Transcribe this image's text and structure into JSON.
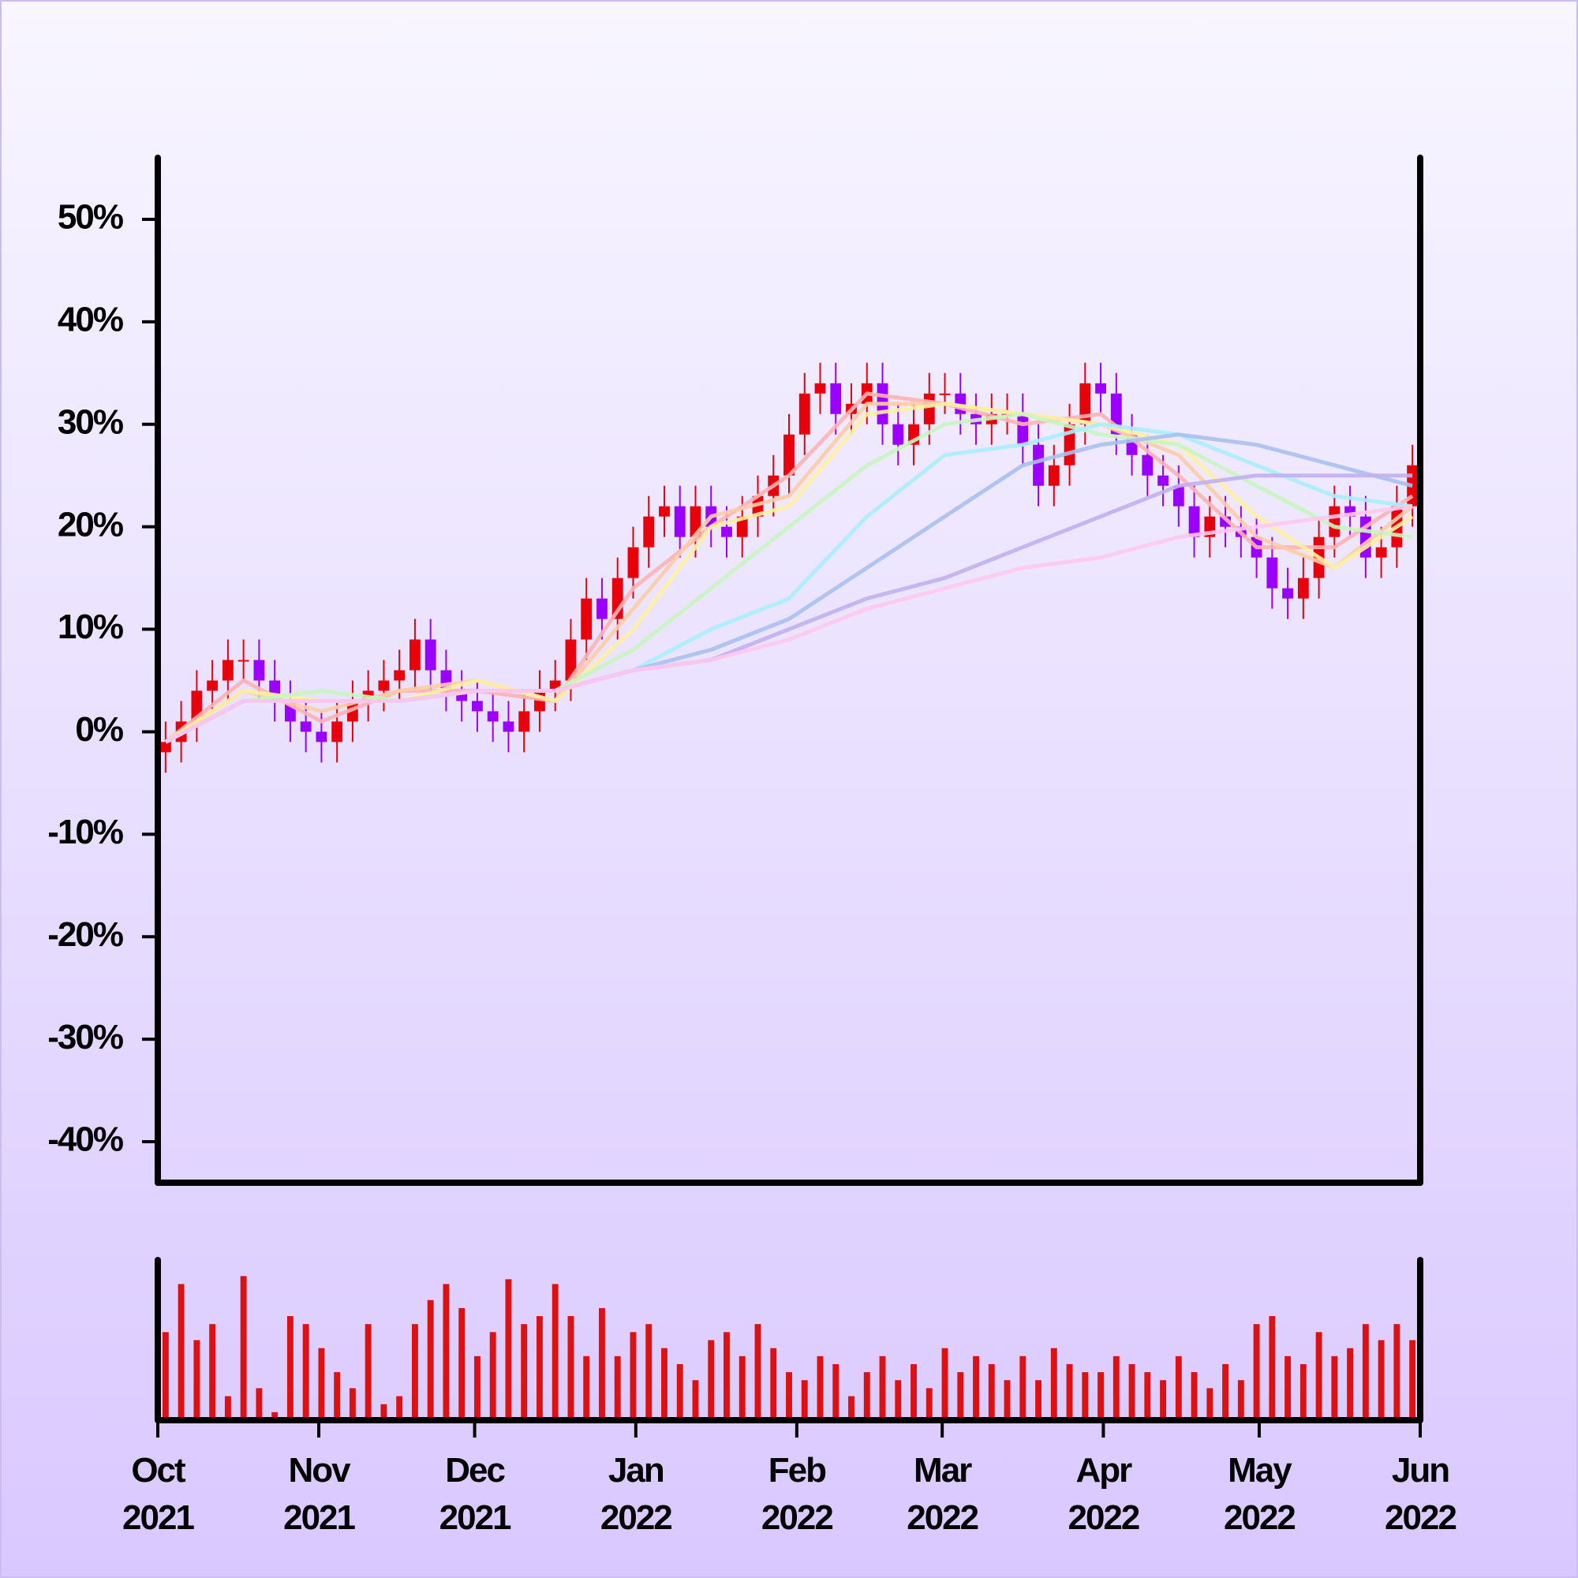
{
  "chart_data": [
    {
      "type": "candlestick",
      "open": [
        -2,
        -1,
        1,
        4,
        5,
        7,
        7,
        5,
        3,
        1,
        0,
        -1,
        1,
        3,
        4,
        5,
        6,
        9,
        6,
        4,
        3,
        2,
        1,
        0,
        2,
        4,
        5,
        9,
        13,
        11,
        15,
        18,
        21,
        22,
        19,
        22,
        20,
        19,
        21,
        23,
        25,
        29,
        33,
        34,
        31,
        32,
        34,
        30,
        28,
        30,
        33,
        33,
        31,
        30,
        31,
        31,
        28,
        24,
        26,
        30,
        34,
        33,
        29,
        27,
        25,
        24,
        22,
        19,
        21,
        20,
        19,
        17,
        14,
        13,
        15,
        19,
        22,
        21,
        17,
        18,
        22
      ],
      "high": [
        1,
        3,
        6,
        7,
        9,
        9,
        9,
        7,
        5,
        3,
        2,
        3,
        5,
        6,
        7,
        8,
        11,
        11,
        8,
        6,
        5,
        4,
        3,
        4,
        6,
        7,
        11,
        15,
        15,
        17,
        20,
        23,
        24,
        24,
        24,
        24,
        22,
        23,
        25,
        27,
        31,
        35,
        36,
        36,
        34,
        36,
        36,
        32,
        32,
        35,
        35,
        35,
        33,
        33,
        33,
        33,
        30,
        28,
        32,
        36,
        36,
        35,
        31,
        29,
        27,
        26,
        24,
        23,
        23,
        22,
        21,
        19,
        16,
        17,
        21,
        24,
        24,
        23,
        20,
        24,
        28
      ],
      "low": [
        -4,
        -3,
        -1,
        2,
        3,
        5,
        3,
        1,
        -1,
        -2,
        -3,
        -3,
        -1,
        1,
        2,
        3,
        4,
        4,
        2,
        1,
        0,
        -1,
        -2,
        -2,
        0,
        2,
        3,
        7,
        9,
        9,
        13,
        16,
        19,
        17,
        17,
        18,
        17,
        17,
        19,
        21,
        23,
        27,
        31,
        29,
        29,
        30,
        28,
        26,
        26,
        28,
        31,
        29,
        28,
        28,
        29,
        26,
        22,
        22,
        24,
        28,
        31,
        27,
        25,
        23,
        22,
        20,
        17,
        17,
        18,
        17,
        15,
        12,
        11,
        11,
        13,
        17,
        19,
        15,
        15,
        16,
        20
      ],
      "close": [
        -1,
        1,
        4,
        5,
        7,
        7,
        5,
        3,
        1,
        0,
        -1,
        1,
        3,
        4,
        5,
        6,
        9,
        6,
        4,
        3,
        2,
        1,
        0,
        2,
        4,
        5,
        9,
        13,
        11,
        15,
        18,
        21,
        22,
        19,
        22,
        20,
        19,
        21,
        23,
        25,
        29,
        33,
        34,
        31,
        32,
        34,
        30,
        28,
        30,
        33,
        33,
        31,
        30,
        31,
        31,
        28,
        24,
        26,
        30,
        34,
        33,
        29,
        27,
        25,
        24,
        22,
        19,
        21,
        20,
        19,
        17,
        14,
        13,
        15,
        19,
        22,
        21,
        17,
        18,
        22,
        26
      ],
      "up_color": "#e8000b",
      "down_color": "#9b00ff",
      "series": [
        {
          "color": "#ffb3b3",
          "x": [
            0,
            5,
            10,
            15,
            20,
            25,
            30,
            35,
            40,
            45,
            50,
            55,
            60,
            65,
            70,
            75,
            80
          ],
          "values": [
            -1,
            5,
            1,
            4,
            4,
            3,
            14,
            20,
            25,
            33,
            32,
            30,
            31,
            25,
            18,
            18,
            23
          ]
        },
        {
          "color": "#ffcca6",
          "x": [
            0,
            5,
            10,
            15,
            20,
            25,
            30,
            35,
            40,
            45,
            50,
            55,
            60,
            65,
            70,
            75,
            80
          ],
          "values": [
            -1,
            4,
            2,
            4,
            5,
            3,
            12,
            21,
            23,
            32,
            32,
            31,
            30,
            27,
            19,
            16,
            22
          ]
        },
        {
          "color": "#fff0a0",
          "x": [
            0,
            5,
            10,
            15,
            20,
            25,
            30,
            35,
            40,
            45,
            50,
            55,
            60,
            65,
            70,
            75,
            80
          ],
          "values": [
            -1,
            4,
            3,
            3,
            5,
            3,
            10,
            20,
            22,
            31,
            32,
            31,
            30,
            28,
            21,
            16,
            21
          ]
        },
        {
          "color": "#c8f5c0",
          "x": [
            0,
            5,
            10,
            15,
            20,
            25,
            30,
            35,
            40,
            45,
            50,
            55,
            60,
            65,
            70,
            75,
            80
          ],
          "values": [
            -1,
            3,
            4,
            3,
            4,
            4,
            8,
            14,
            20,
            26,
            30,
            31,
            29,
            28,
            24,
            20,
            19
          ]
        },
        {
          "color": "#a8eeff",
          "x": [
            0,
            5,
            10,
            15,
            20,
            25,
            30,
            35,
            40,
            45,
            50,
            55,
            60,
            65,
            70,
            75,
            80
          ],
          "values": [
            -1,
            3,
            3,
            3,
            4,
            4,
            6,
            10,
            13,
            21,
            27,
            28,
            30,
            29,
            26,
            23,
            22
          ]
        },
        {
          "color": "#a8c0f0",
          "x": [
            0,
            5,
            10,
            15,
            20,
            25,
            30,
            35,
            40,
            45,
            50,
            55,
            60,
            65,
            70,
            75,
            80
          ],
          "values": [
            -1,
            3,
            3,
            3,
            4,
            4,
            6,
            8,
            11,
            16,
            21,
            26,
            28,
            29,
            28,
            26,
            24
          ]
        },
        {
          "color": "#c0b0f0",
          "x": [
            0,
            5,
            10,
            15,
            20,
            25,
            30,
            35,
            40,
            45,
            50,
            55,
            60,
            65,
            70,
            75,
            80
          ],
          "values": [
            -1,
            3,
            3,
            3,
            4,
            4,
            6,
            7,
            10,
            13,
            15,
            18,
            21,
            24,
            25,
            25,
            25
          ]
        },
        {
          "color": "#ffc8f0",
          "x": [
            0,
            5,
            10,
            15,
            20,
            25,
            30,
            35,
            40,
            45,
            50,
            55,
            60,
            65,
            70,
            75,
            80
          ],
          "values": [
            -1,
            3,
            3,
            3,
            4,
            4,
            6,
            7,
            9,
            12,
            14,
            16,
            17,
            19,
            20,
            21,
            22
          ]
        }
      ],
      "xlim": [
        0,
        81
      ],
      "ylim": [
        -44,
        56
      ],
      "yticks": [
        {
          "value": -40,
          "label": "-40%"
        },
        {
          "value": -30,
          "label": "-30%"
        },
        {
          "value": -20,
          "label": "-20%"
        },
        {
          "value": -10,
          "label": "-10%"
        },
        {
          "value": 0,
          "label": "0%"
        },
        {
          "value": 10,
          "label": "10%"
        },
        {
          "value": 20,
          "label": "20%"
        },
        {
          "value": 30,
          "label": "30%"
        },
        {
          "value": 40,
          "label": "40%"
        },
        {
          "value": 50,
          "label": "50%"
        }
      ]
    },
    {
      "type": "bar",
      "values": [
        55,
        85,
        50,
        60,
        15,
        90,
        20,
        5,
        65,
        60,
        45,
        30,
        20,
        60,
        10,
        15,
        60,
        75,
        85,
        70,
        40,
        55,
        88,
        60,
        65,
        85,
        65,
        40,
        70,
        40,
        55,
        60,
        45,
        35,
        25,
        50,
        55,
        40,
        60,
        45,
        30,
        25,
        40,
        35,
        15,
        30,
        40,
        25,
        35,
        20,
        45,
        30,
        40,
        35,
        25,
        40,
        25,
        45,
        35,
        30,
        30,
        40,
        35,
        30,
        25,
        40,
        30,
        20,
        35,
        25,
        60,
        65,
        40,
        35,
        55,
        40,
        45,
        60,
        50,
        60,
        50
      ],
      "color": "#dd1111",
      "xlim": [
        0,
        81
      ],
      "ylim": [
        0,
        100
      ],
      "xticks": [
        {
          "value": 0,
          "label": "Oct 2021"
        },
        {
          "value": 10.33,
          "label": "Nov 2021"
        },
        {
          "value": 20.33,
          "label": "Dec 2021"
        },
        {
          "value": 30.67,
          "label": "Jan 2022"
        },
        {
          "value": 41,
          "label": "Feb 2022"
        },
        {
          "value": 50.33,
          "label": "Mar 2022"
        },
        {
          "value": 60.67,
          "label": "Apr 2022"
        },
        {
          "value": 70.67,
          "label": "May 2022"
        },
        {
          "value": 81,
          "label": "Jun 2022"
        }
      ]
    }
  ]
}
